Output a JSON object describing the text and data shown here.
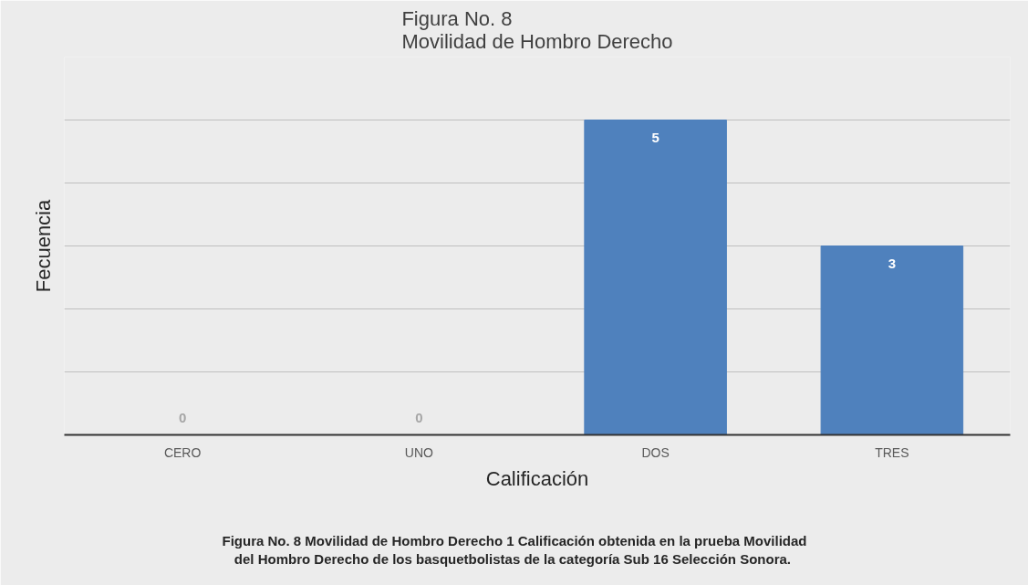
{
  "chart_data": {
    "type": "bar",
    "title": "Figura No. 8\nMovilidad de Hombro Derecho",
    "xlabel": "Calificación",
    "ylabel": "Fecuencia",
    "categories": [
      "CERO",
      "UNO",
      "DOS",
      "TRES"
    ],
    "values": [
      0,
      0,
      5,
      3
    ],
    "color": "#4f81bd",
    "data_labels": true,
    "ylim": [
      0,
      6
    ],
    "yticks": [
      {
        "value": 1,
        "label": null
      },
      {
        "value": 2,
        "label": null
      },
      {
        "value": 3,
        "label": null
      },
      {
        "value": 4,
        "label": null
      },
      {
        "value": 5,
        "label": null
      },
      {
        "value": 6,
        "label": null
      }
    ],
    "grid": "y",
    "tick_labels": "x",
    "annotations": [
      "Figura No. 8 Movilidad de Hombro Derecho 1 Calificación obtenida en la prueba Movilidad\ndel Hombro Derecho  de los basquetbolistas de la categoría Sub 16 Selección Sonora."
    ]
  }
}
